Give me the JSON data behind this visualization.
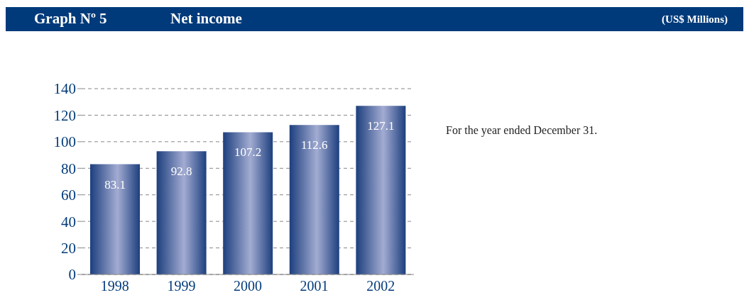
{
  "chart_data": {
    "type": "bar",
    "title": "Net income",
    "subtitle": "Graph Nº 5",
    "categories": [
      "1998",
      "1999",
      "2000",
      "2001",
      "2002"
    ],
    "values": [
      83.1,
      92.8,
      107.2,
      112.6,
      127.1
    ],
    "color": "#1d3f7e",
    "ylim": [
      0,
      140
    ],
    "yticks": [
      0,
      20,
      40,
      60,
      80,
      100,
      120,
      140
    ],
    "grid": "y",
    "data_labels": true,
    "annotations": [
      "(US$ Millions)",
      "For the year ended December 31."
    ]
  }
}
